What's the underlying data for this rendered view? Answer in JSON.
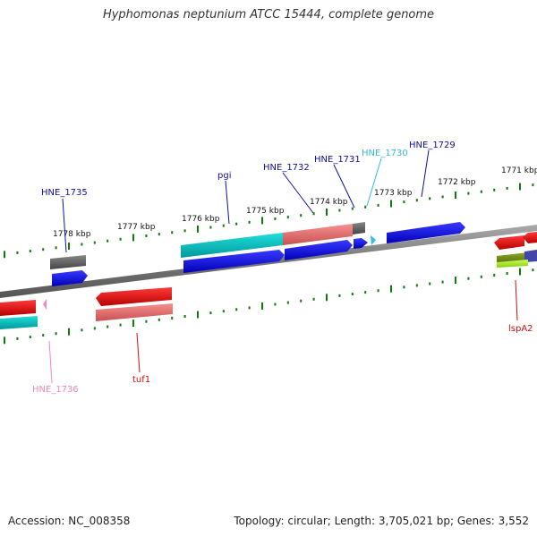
{
  "title": "Hyphomonas neptunium ATCC 15444, complete genome",
  "footer": {
    "accession": "Accession: NC_008358",
    "topology": "Topology: circular; Length: 3,705,021 bp; Genes: 3,552"
  },
  "ruler_labels": [
    "1771 kbp",
    "1772 kbp",
    "1773 kbp",
    "1774 kbp",
    "1775 kbp",
    "1776 kbp",
    "1777 kbp",
    "1778 kbp"
  ],
  "gene_labels": [
    {
      "text": "HNE_1735",
      "color": "#1010a0"
    },
    {
      "text": "pgi",
      "color": "#1010a0"
    },
    {
      "text": "HNE_1732",
      "color": "#1010a0"
    },
    {
      "text": "HNE_1731",
      "color": "#1010a0"
    },
    {
      "text": "HNE_1730",
      "color": "#33bbdd"
    },
    {
      "text": "HNE_1729",
      "color": "#1010a0"
    },
    {
      "text": "HNE_1736",
      "color": "#ee88bb"
    },
    {
      "text": "tuf1",
      "color": "#cc1010"
    },
    {
      "text": "lspA2",
      "color": "#cc1010"
    }
  ],
  "feature_colors": {
    "blue": "#0000ee",
    "red": "#ee0000",
    "salmon": "#ee7070",
    "cyan": "#11cccc",
    "gray": "#666666",
    "pink": "#ee88bb",
    "lightblue": "#33bbee",
    "olive": "#668811",
    "lime": "#aaee22",
    "slate": "#4444aa",
    "tick": "#117711"
  }
}
